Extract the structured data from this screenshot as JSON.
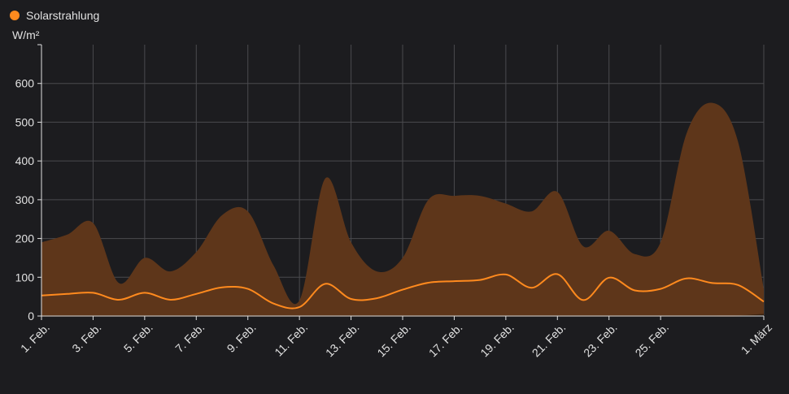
{
  "chart_data": {
    "type": "area",
    "ylabel": "W/m²",
    "ylim": [
      0,
      700
    ],
    "yticks": [
      0,
      100,
      200,
      300,
      400,
      500,
      600
    ],
    "grid": true,
    "legend_position": "top-left",
    "x_days": [
      1,
      2,
      3,
      4,
      5,
      6,
      7,
      8,
      9,
      10,
      11,
      12,
      13,
      14,
      15,
      16,
      17,
      18,
      19,
      20,
      21,
      22,
      23,
      24,
      25,
      26,
      27,
      28,
      29
    ],
    "xtick_labels": [
      {
        "day": 1,
        "label": "1. Feb."
      },
      {
        "day": 3,
        "label": "3. Feb."
      },
      {
        "day": 5,
        "label": "5. Feb."
      },
      {
        "day": 7,
        "label": "7. Feb."
      },
      {
        "day": 9,
        "label": "9. Feb."
      },
      {
        "day": 11,
        "label": "11. Feb."
      },
      {
        "day": 13,
        "label": "13. Feb."
      },
      {
        "day": 15,
        "label": "15. Feb."
      },
      {
        "day": 17,
        "label": "17. Feb."
      },
      {
        "day": 19,
        "label": "19. Feb."
      },
      {
        "day": 21,
        "label": "21. Feb."
      },
      {
        "day": 23,
        "label": "23. Feb."
      },
      {
        "day": 25,
        "label": "25. Feb."
      },
      {
        "day": 29,
        "label": "1. März"
      }
    ],
    "series": [
      {
        "name": "Solarstrahlung",
        "color": "#ff8a1e",
        "fill": "#5e361a",
        "mean": [
          53,
          57,
          60,
          42,
          60,
          42,
          57,
          74,
          70,
          32,
          23,
          83,
          44,
          46,
          68,
          86,
          90,
          93,
          107,
          73,
          108,
          41,
          99,
          66,
          70,
          97,
          85,
          80,
          37
        ],
        "max": [
          190,
          210,
          240,
          85,
          150,
          115,
          165,
          260,
          270,
          130,
          40,
          355,
          190,
          115,
          150,
          300,
          310,
          310,
          290,
          270,
          320,
          180,
          220,
          160,
          190,
          470,
          550,
          450,
          70
        ],
        "min": [
          0,
          0,
          0,
          0,
          0,
          0,
          0,
          0,
          0,
          0,
          0,
          0,
          0,
          0,
          0,
          0,
          0,
          0,
          0,
          0,
          0,
          0,
          0,
          0,
          0,
          0,
          0,
          0,
          4
        ]
      }
    ]
  }
}
